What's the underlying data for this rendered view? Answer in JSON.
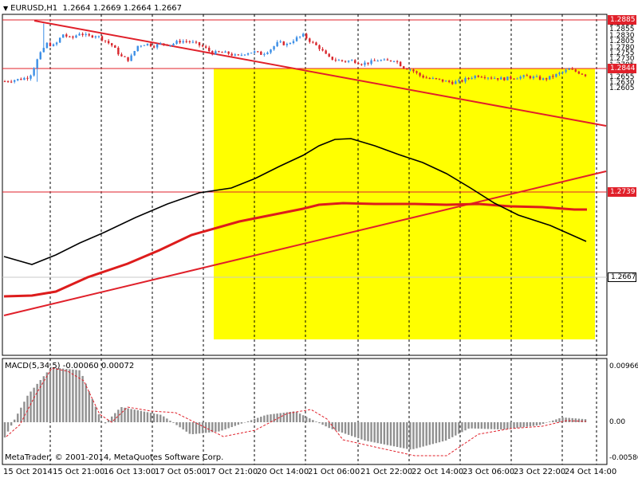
{
  "header": {
    "symbol_timeframe": "EURUSD,H1",
    "ohlc": "1.2664 1.2669 1.2664 1.2667"
  },
  "indicator": {
    "label": "MACD(5,34,5) -0.00060 0.00072"
  },
  "footer": {
    "copyright": "MetaTrader, © 2001-2014, MetaQuotes Software Corp."
  },
  "y_axis_ticks": [
    "1.2880",
    "1.2855",
    "1.2830",
    "1.2805",
    "1.2780",
    "1.2755",
    "1.2730",
    "1.2705",
    "1.2680",
    "1.2655",
    "1.2630",
    "1.2605"
  ],
  "macd_axis_ticks": [
    "0.00966",
    "0.00",
    "-0.00586"
  ],
  "x_axis_labels": [
    "15 Oct 2014",
    "15 Oct 21:00",
    "16 Oct 13:00",
    "17 Oct 05:00",
    "17 Oct 21:00",
    "20 Oct 14:00",
    "21 Oct 06:00",
    "21 Oct 22:00",
    "22 Oct 14:00",
    "23 Oct 06:00",
    "23 Oct 22:00",
    "24 Oct 14:00"
  ],
  "price_tags": [
    {
      "text": "1.2885",
      "type": "hline"
    },
    {
      "text": "1.2844",
      "type": "hline"
    },
    {
      "text": "1.2739",
      "type": "hline"
    },
    {
      "text": "1.2667",
      "type": "current"
    }
  ],
  "colors": {
    "bull": "#3a8ee6",
    "bear": "#d8262c",
    "hline": "#e0202a",
    "trendline": "#e0202a",
    "ma_fast": "#000000",
    "ma_slow": "#dd1c1c",
    "zone": "#ffff00",
    "macd_hist": "#909090",
    "macd_signal": "#e0202a",
    "grid": "#000000"
  },
  "chart_data": {
    "type": "candlestick",
    "symbol": "EURUSD",
    "timeframe": "H1",
    "y_range": [
      1.2596,
      1.2895
    ],
    "close_path": [
      1.264,
      1.2645,
      1.265,
      1.266,
      1.2738,
      1.28,
      1.279,
      1.284,
      1.282,
      1.2845,
      1.283,
      1.2835,
      1.2815,
      1.279,
      1.2745,
      1.273,
      1.279,
      1.28,
      1.279,
      1.28,
      1.2795,
      1.281,
      1.281,
      1.28,
      1.2785,
      1.276,
      1.2762,
      1.2758,
      1.2745,
      1.276,
      1.2765,
      1.2755,
      1.2775,
      1.2805,
      1.2795,
      1.282,
      1.2835,
      1.2805,
      1.278,
      1.274,
      1.273,
      1.2725,
      1.2728,
      1.2715,
      1.272,
      1.273,
      1.2725,
      1.2732,
      1.27,
      1.269,
      1.2665,
      1.2652,
      1.2648,
      1.264,
      1.2635,
      1.264,
      1.2655,
      1.2665,
      1.266,
      1.2655,
      1.265,
      1.2655,
      1.2658,
      1.266,
      1.2655,
      1.2648,
      1.266,
      1.2675,
      1.269,
      1.268,
      1.2667
    ],
    "horizontal_levels": [
      1.2885,
      1.2844,
      1.2739
    ],
    "current_price": 1.2667,
    "zone": {
      "price_top": 1.2844,
      "price_bottom": 1.2613
    },
    "macd": {
      "params": "5,34,5",
      "main": -0.0006,
      "signal": 0.00072,
      "y_range": [
        -0.00586,
        0.00966
      ]
    }
  }
}
